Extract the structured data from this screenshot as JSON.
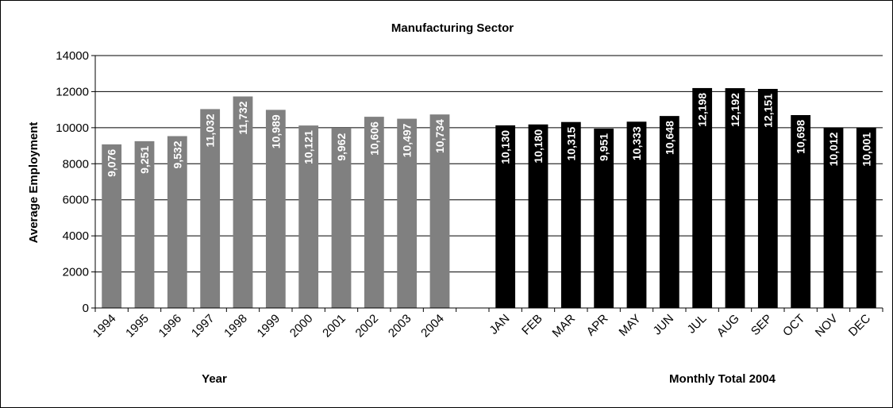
{
  "chart_data": {
    "type": "bar",
    "title": "Manufacturing Sector",
    "ylabel": "Average Employment",
    "ylim": [
      0,
      14000
    ],
    "yticks": [
      "0",
      "2000",
      "4000",
      "6000",
      "8000",
      "10000",
      "12000",
      "14000"
    ],
    "grid": true,
    "groups": [
      {
        "xlabel": "Year",
        "color": "#808080",
        "categories": [
          "1994",
          "1995",
          "1996",
          "1997",
          "1998",
          "1999",
          "2000",
          "2001",
          "2002",
          "2003",
          "2004"
        ],
        "values": [
          9076,
          9251,
          9532,
          11032,
          11732,
          10989,
          10121,
          9962,
          10606,
          10497,
          10734
        ],
        "labels": [
          "9,076",
          "9,251",
          "9,532",
          "11,032",
          "11,732",
          "10,989",
          "10,121",
          "9,962",
          "10,606",
          "10,497",
          "10,734"
        ]
      },
      {
        "xlabel": "Monthly Total 2004",
        "color": "#000000",
        "categories": [
          "JAN",
          "FEB",
          "MAR",
          "APR",
          "MAY",
          "JUN",
          "JUL",
          "AUG",
          "SEP",
          "OCT",
          "NOV",
          "DEC"
        ],
        "values": [
          10130,
          10180,
          10315,
          9951,
          10333,
          10648,
          12198,
          12192,
          12151,
          10698,
          10012,
          10001
        ],
        "labels": [
          "10,130",
          "10,180",
          "10,315",
          "9,951",
          "10,333",
          "10,648",
          "12,198",
          "12,192",
          "12,151",
          "10,698",
          "10,012",
          "10,001"
        ]
      }
    ]
  }
}
